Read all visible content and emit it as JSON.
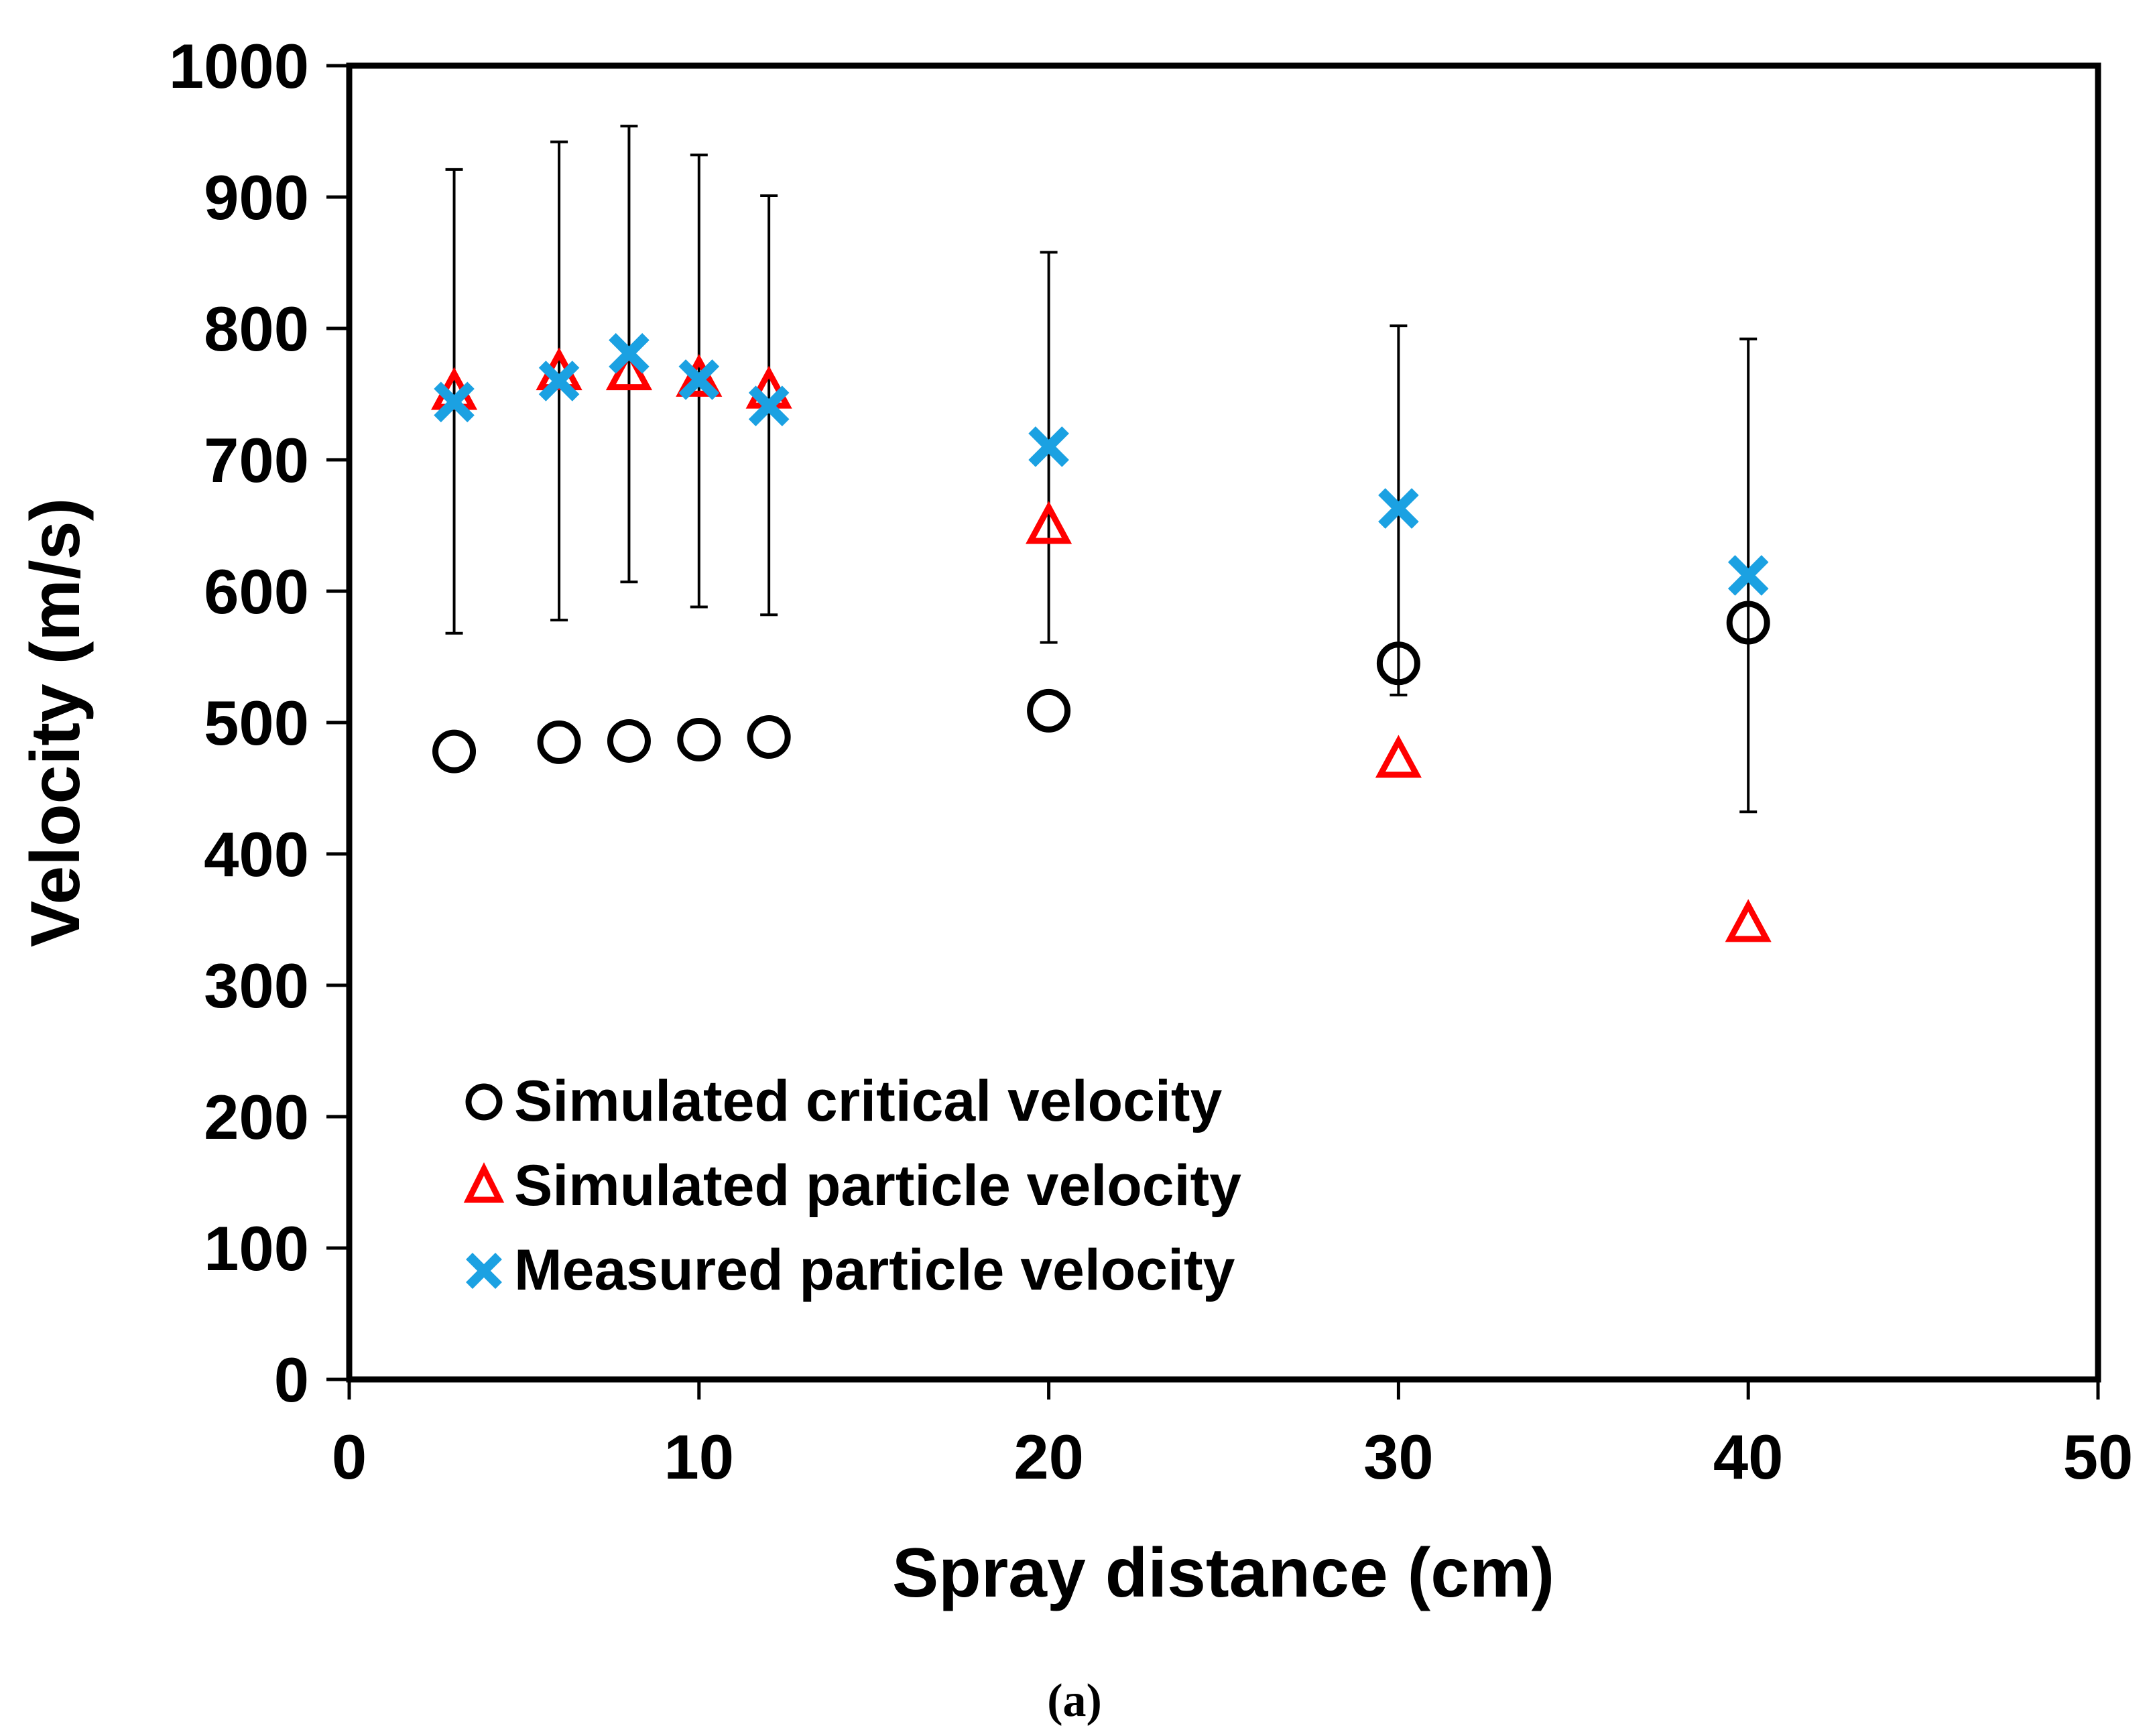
{
  "chart_data": {
    "type": "scatter",
    "title": "",
    "xlabel": "Spray distance (cm)",
    "ylabel": "Velocity (m/s)",
    "xlim": [
      0,
      50
    ],
    "ylim": [
      0,
      1000
    ],
    "xticks": [
      0,
      10,
      20,
      30,
      40,
      50
    ],
    "yticks": [
      0,
      100,
      200,
      300,
      400,
      500,
      600,
      700,
      800,
      900,
      1000
    ],
    "grid": false,
    "legend_position": "bottom-left",
    "caption": "(a)",
    "series": [
      {
        "name": "Simulated critical velocity",
        "marker": "circle",
        "color": "#000000",
        "x": [
          3,
          6,
          8,
          10,
          12,
          20,
          30,
          40
        ],
        "y": [
          478,
          485,
          486,
          487,
          489,
          509,
          545,
          576
        ]
      },
      {
        "name": "Simulated particle velocity",
        "marker": "triangle",
        "color": "#ff0000",
        "x": [
          3,
          6,
          8,
          10,
          12,
          20,
          30,
          40
        ],
        "y": [
          752,
          767,
          767,
          762,
          753,
          650,
          472,
          347
        ]
      },
      {
        "name": "Measured particle velocity",
        "marker": "cross",
        "color": "#1ba1e2",
        "x": [
          3,
          6,
          8,
          10,
          12,
          20,
          30,
          40
        ],
        "y": [
          744,
          760,
          781,
          761,
          741,
          710,
          663,
          612
        ],
        "error_low": [
          568,
          578,
          607,
          588,
          582,
          561,
          521,
          432
        ],
        "error_high": [
          921,
          942,
          954,
          932,
          901,
          858,
          802,
          792
        ]
      }
    ]
  }
}
